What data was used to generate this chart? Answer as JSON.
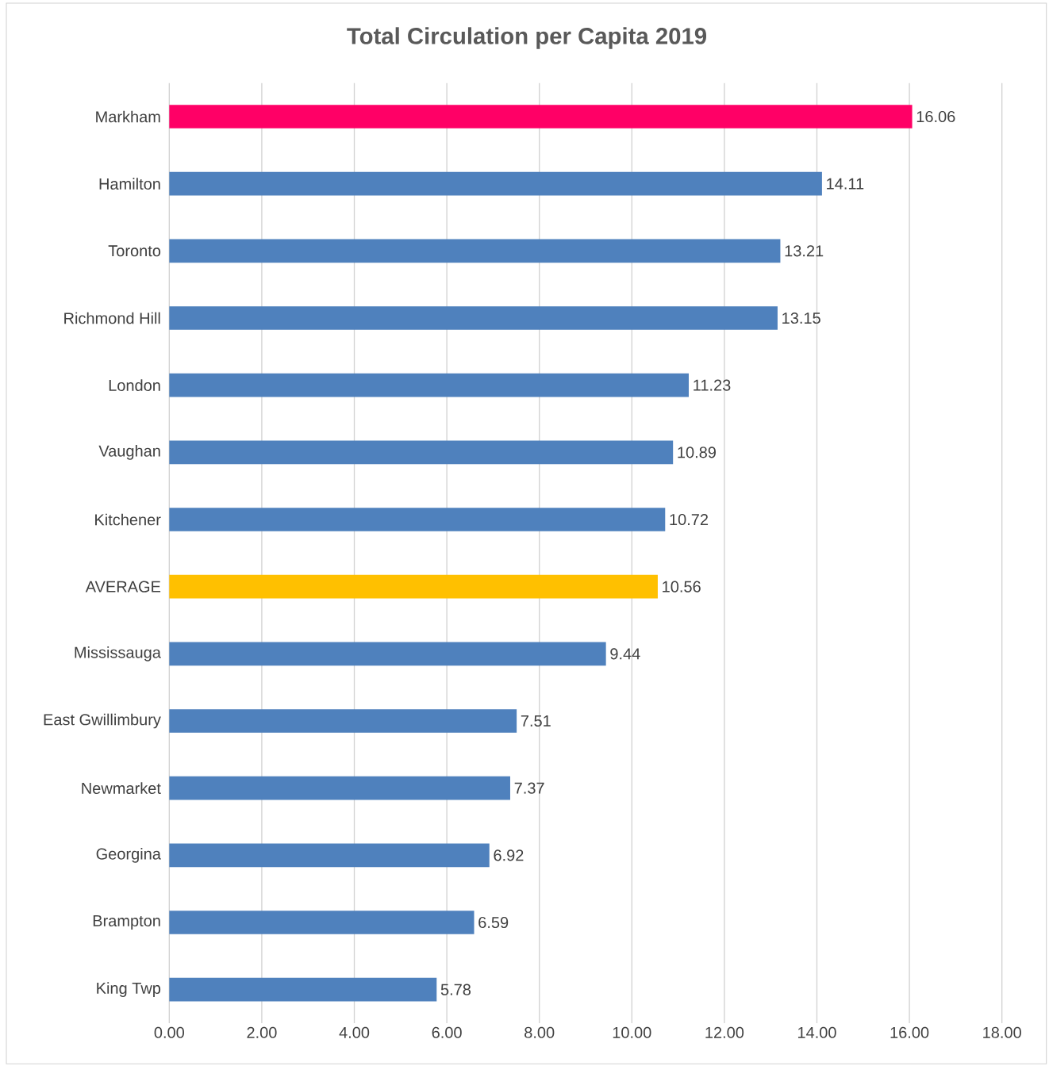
{
  "chart_data": {
    "type": "bar",
    "orientation": "horizontal",
    "title": "Total Circulation per Capita 2019",
    "categories": [
      "Markham",
      "Hamilton",
      "Toronto",
      "Richmond Hill",
      "London",
      "Vaughan",
      "Kitchener",
      "AVERAGE",
      "Mississauga",
      "East Gwillimbury",
      "Newmarket",
      "Georgina",
      "Brampton",
      "King Twp"
    ],
    "values": [
      16.06,
      14.11,
      13.21,
      13.15,
      11.23,
      10.89,
      10.72,
      10.56,
      9.44,
      7.51,
      7.37,
      6.92,
      6.59,
      5.78
    ],
    "colors": [
      "#ff0066",
      "#4f81bd",
      "#4f81bd",
      "#4f81bd",
      "#4f81bd",
      "#4f81bd",
      "#4f81bd",
      "#ffc000",
      "#4f81bd",
      "#4f81bd",
      "#4f81bd",
      "#4f81bd",
      "#4f81bd",
      "#4f81bd"
    ],
    "xlim": [
      0,
      18
    ],
    "xticks": [
      {
        "value": 0,
        "label": "0.00"
      },
      {
        "value": 2,
        "label": "2.00"
      },
      {
        "value": 4,
        "label": "4.00"
      },
      {
        "value": 6,
        "label": "6.00"
      },
      {
        "value": 8,
        "label": "8.00"
      },
      {
        "value": 10,
        "label": "10.00"
      },
      {
        "value": 12,
        "label": "12.00"
      },
      {
        "value": 14,
        "label": "14.00"
      },
      {
        "value": 16,
        "label": "16.00"
      },
      {
        "value": 18,
        "label": "18.00"
      }
    ],
    "grid": "x",
    "data_labels": true
  }
}
